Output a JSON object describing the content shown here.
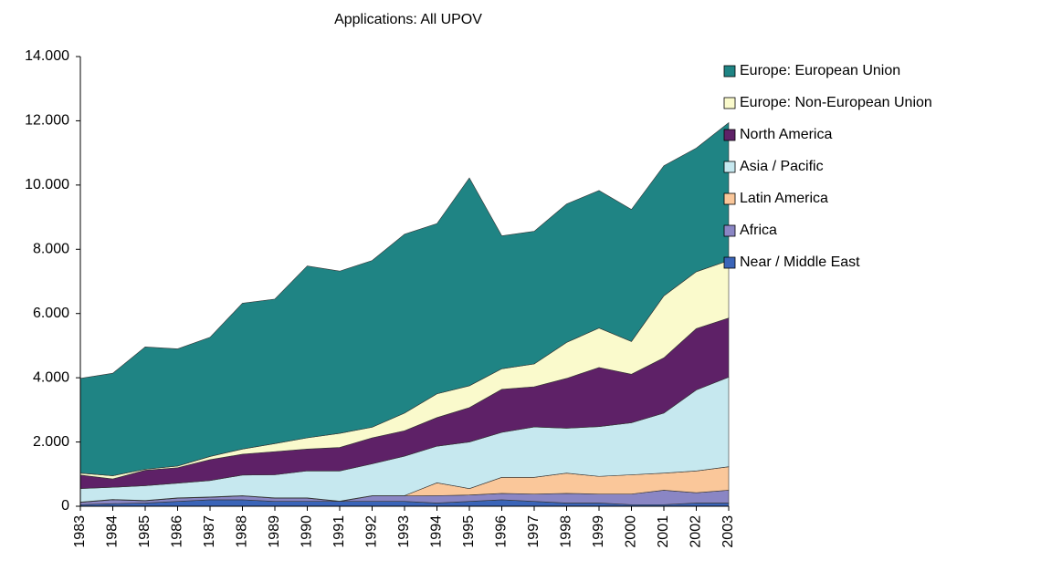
{
  "chart_data": {
    "type": "stacked_area",
    "title": "Applications:  All UPOV",
    "categories": [
      "1983",
      "1984",
      "1985",
      "1986",
      "1987",
      "1988",
      "1989",
      "1990",
      "1991",
      "1992",
      "1993",
      "1994",
      "1995",
      "1996",
      "1997",
      "1998",
      "1999",
      "2000",
      "2001",
      "2002",
      "2003"
    ],
    "series": [
      {
        "name": "Europe:  European Union",
        "color": "#1f8484",
        "values": [
          2950,
          3190,
          3810,
          3650,
          3710,
          4540,
          4500,
          5350,
          5050,
          5190,
          5570,
          5300,
          6470,
          4140,
          4130,
          4310,
          4280,
          4110,
          4050,
          3850,
          4290
        ]
      },
      {
        "name": "Europe:  Non-European Union",
        "color": "#fafacc",
        "values": [
          60,
          100,
          30,
          50,
          100,
          160,
          250,
          350,
          440,
          330,
          550,
          740,
          680,
          640,
          710,
          1120,
          1230,
          1020,
          1930,
          1770,
          1790
        ]
      },
      {
        "name": "North America",
        "color": "#5e2167",
        "values": [
          420,
          260,
          480,
          480,
          650,
          650,
          720,
          680,
          730,
          810,
          790,
          890,
          1070,
          1340,
          1250,
          1550,
          1840,
          1510,
          1720,
          1910,
          1840
        ]
      },
      {
        "name": "Asia / Pacific",
        "color": "#c6e8ef",
        "values": [
          420,
          380,
          460,
          460,
          510,
          640,
          720,
          840,
          940,
          990,
          1230,
          1140,
          1450,
          1400,
          1570,
          1400,
          1550,
          1620,
          1870,
          2520,
          2790
        ]
      },
      {
        "name": "Latin America",
        "color": "#fac79a",
        "values": [
          10,
          10,
          10,
          10,
          10,
          10,
          10,
          10,
          10,
          10,
          10,
          400,
          200,
          500,
          520,
          630,
          550,
          600,
          530,
          680,
          730
        ]
      },
      {
        "name": "Africa",
        "color": "#8a86c4",
        "values": [
          70,
          120,
          70,
          100,
          80,
          120,
          100,
          100,
          0,
          170,
          170,
          230,
          200,
          200,
          230,
          300,
          280,
          330,
          450,
          320,
          400
        ]
      },
      {
        "name": "Near / Middle East",
        "color": "#3a64b8",
        "values": [
          50,
          80,
          100,
          150,
          200,
          200,
          150,
          150,
          150,
          150,
          150,
          100,
          150,
          200,
          150,
          100,
          100,
          50,
          50,
          100,
          100
        ]
      }
    ],
    "ylim": [
      0,
      14000
    ],
    "yticks": [
      0,
      {
        "value": 2000,
        "label": "2.000"
      },
      {
        "value": 4000,
        "label": "4.000"
      },
      {
        "value": 6000,
        "label": "6.000"
      },
      {
        "value": 8000,
        "label": "8.000"
      },
      {
        "value": 10000,
        "label": "10.000"
      },
      {
        "value": 12000,
        "label": "12.000"
      },
      {
        "value": 14000,
        "label": "14.000"
      }
    ],
    "legend": "right"
  }
}
